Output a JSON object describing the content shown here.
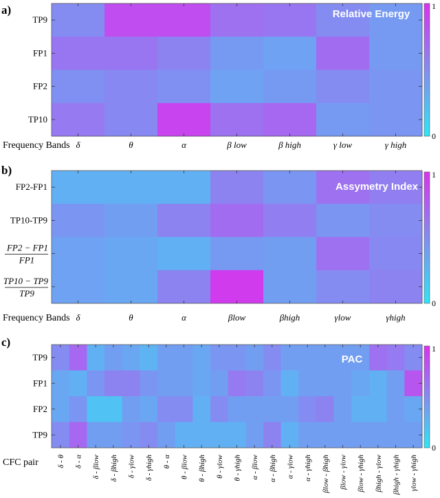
{
  "colors": {
    "low": "#2ee6f5",
    "high": "#d932ee"
  },
  "chart_data": [
    {
      "type": "heatmap",
      "panel_label": "a)",
      "title": "Relative Energy",
      "xlabel": "Frequency Bands",
      "rows": [
        "TP9",
        "FP1",
        "FP2",
        "TP10"
      ],
      "columns": [
        "δ",
        "θ",
        "α",
        "β low",
        "β high",
        "γ low",
        "γ high"
      ],
      "values": [
        [
          0.5,
          0.85,
          0.85,
          0.65,
          0.62,
          0.5,
          0.42
        ],
        [
          0.62,
          0.62,
          0.55,
          0.42,
          0.38,
          0.68,
          0.42
        ],
        [
          0.48,
          0.52,
          0.48,
          0.38,
          0.42,
          0.5,
          0.45
        ],
        [
          0.6,
          0.52,
          0.9,
          0.65,
          0.7,
          0.42,
          0.45
        ]
      ],
      "colorbar": {
        "min": "0",
        "max": "1"
      }
    },
    {
      "type": "heatmap",
      "panel_label": "b)",
      "title": "Assymetry Index",
      "xlabel": "Frequency Bands",
      "rows": [
        "FP2-FP1",
        "TP10-TP9",
        "FP2 − FP1 / FP1",
        "TP10 − TP9 / TP9"
      ],
      "columns": [
        "δ",
        "θ",
        "α",
        "βlow",
        "βhigh",
        "γlow",
        "γhigh"
      ],
      "values": [
        [
          0.3,
          0.3,
          0.3,
          0.55,
          0.45,
          0.65,
          0.58
        ],
        [
          0.45,
          0.4,
          0.55,
          0.68,
          0.58,
          0.45,
          0.5
        ],
        [
          0.38,
          0.35,
          0.3,
          0.42,
          0.4,
          0.65,
          0.52
        ],
        [
          0.38,
          0.35,
          0.55,
          0.95,
          0.4,
          0.5,
          0.55
        ]
      ],
      "colorbar": {
        "min": "0",
        "max": "1"
      }
    },
    {
      "type": "heatmap",
      "panel_label": "c)",
      "title": "PAC",
      "xlabel": "CFC pair",
      "rows": [
        "TP9",
        "FP1",
        "FP2",
        "TP9"
      ],
      "columns": [
        "δ - θ",
        "δ - α",
        "δ - βlow",
        "δ - βhigh",
        "δ - γlow",
        "δ - γhigh",
        "θ - α",
        "θ - βlow",
        "θ - βhigh",
        "θ - γlow",
        "θ - γhigh",
        "α - βlow",
        "α - βhigh",
        "α - γlow",
        "α - γhigh",
        "βlow - βhigh",
        "βlow - γlow",
        "βlow - γhigh",
        "βhigh - γlow",
        "βhigh - γhigh",
        "γlow - γhigh"
      ],
      "values": [
        [
          0.5,
          0.7,
          0.3,
          0.4,
          0.35,
          0.28,
          0.4,
          0.4,
          0.35,
          0.45,
          0.45,
          0.4,
          0.5,
          0.4,
          0.4,
          0.4,
          0.4,
          0.4,
          0.65,
          0.6,
          0.5
        ],
        [
          0.35,
          0.3,
          0.45,
          0.55,
          0.55,
          0.45,
          0.4,
          0.4,
          0.35,
          0.4,
          0.6,
          0.55,
          0.45,
          0.3,
          0.4,
          0.4,
          0.4,
          0.35,
          0.3,
          0.4,
          0.8
        ],
        [
          0.35,
          0.45,
          0.2,
          0.2,
          0.4,
          0.35,
          0.5,
          0.5,
          0.3,
          0.5,
          0.4,
          0.4,
          0.4,
          0.4,
          0.5,
          0.55,
          0.4,
          0.3,
          0.3,
          0.4,
          0.35
        ],
        [
          0.5,
          0.7,
          0.4,
          0.4,
          0.45,
          0.5,
          0.4,
          0.3,
          0.3,
          0.3,
          0.3,
          0.4,
          0.55,
          0.3,
          0.4,
          0.4,
          0.4,
          0.4,
          0.4,
          0.4,
          0.4
        ]
      ],
      "colorbar": {
        "min": "0",
        "max": "1"
      }
    }
  ]
}
